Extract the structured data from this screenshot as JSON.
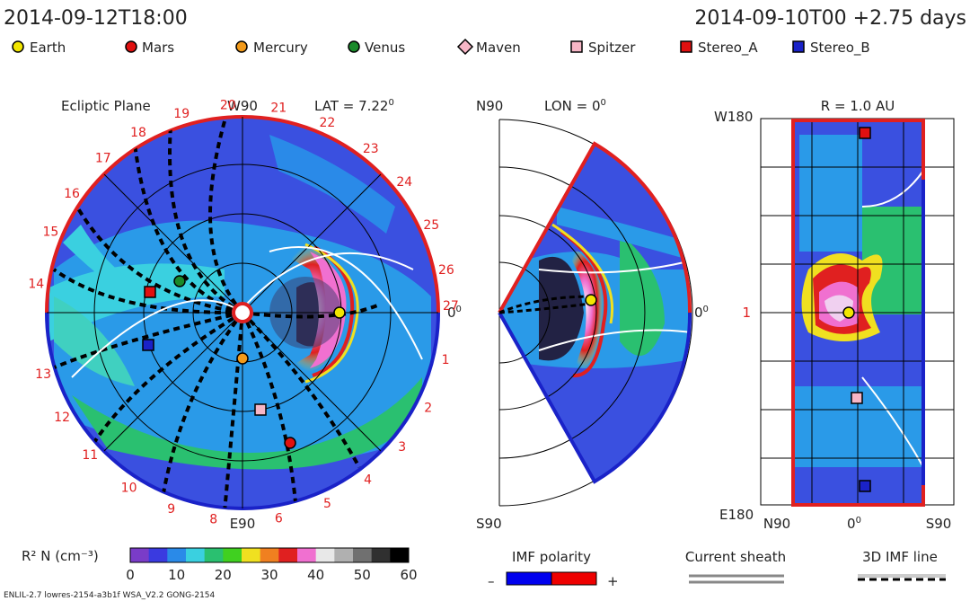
{
  "header": {
    "datetime": "2014-09-12T18:00",
    "run_info": "2014-09-10T00 +2.75 days"
  },
  "legend": [
    {
      "label": "Earth",
      "marker": "circle",
      "color": "#f2e600"
    },
    {
      "label": "Mars",
      "marker": "circle",
      "color": "#e01010"
    },
    {
      "label": "Mercury",
      "marker": "circle",
      "color": "#f29a1a"
    },
    {
      "label": "Venus",
      "marker": "circle",
      "color": "#1a8a2a"
    },
    {
      "label": "Maven",
      "marker": "diamond",
      "color": "#f7b6c6"
    },
    {
      "label": "Spitzer",
      "marker": "square",
      "color": "#f7b6c6"
    },
    {
      "label": "Stereo_A",
      "marker": "square",
      "color": "#e01010"
    },
    {
      "label": "Stereo_B",
      "marker": "square",
      "color": "#1a22c8"
    }
  ],
  "panels": {
    "ecliptic": {
      "title": "Ecliptic Plane",
      "lat_label": "LAT = 7.22",
      "degree_symbol": "0",
      "top_label": "W90",
      "bottom_label": "E90",
      "right_label": "0"
    },
    "meridional": {
      "lon_label": "LON = 0",
      "degree_symbol": "0",
      "top_label": "N90",
      "bottom_label": "S90",
      "right_label": "0"
    },
    "shell": {
      "title": "R = 1.0 AU",
      "top_left_label": "W180",
      "bottom_left_label": "E180",
      "mid_left_label": "1",
      "x_labels": [
        "N90",
        "0",
        "S90"
      ],
      "degree_symbol": "0"
    }
  },
  "colorbar": {
    "label": "R² N (cm⁻³)",
    "ticks": [
      "0",
      "10",
      "20",
      "30",
      "40",
      "50",
      "60"
    ],
    "colors": [
      "#7a3cc8",
      "#3a3ae0",
      "#2a8ae8",
      "#3ad0e0",
      "#2ac070",
      "#40d020",
      "#f0e020",
      "#f08020",
      "#e02020",
      "#f070d0",
      "#e8e8e8",
      "#b0b0b0",
      "#707070",
      "#303030",
      "#000000"
    ]
  },
  "imf_polarity": {
    "label": "IMF polarity",
    "minus": "–",
    "plus": "+",
    "neg_color": "#0000ee",
    "pos_color": "#ee0000"
  },
  "current_sheath": {
    "label": "Current sheath"
  },
  "imf_line": {
    "label": "3D IMF line"
  },
  "footer": {
    "text": "ENLIL-2.7 lowres-2154-a3b1f WSA_V2.2 GONG-2154"
  },
  "chart_data": {
    "type": "heatmap",
    "title": "",
    "colorbar_range": [
      0,
      60
    ],
    "carrington_rotation_ticks": [
      "1",
      "2",
      "3",
      "4",
      "5",
      "6",
      "8",
      "9",
      "10",
      "11",
      "12",
      "13",
      "14",
      "15",
      "16",
      "17",
      "18",
      "19",
      "20",
      "21",
      "22",
      "23",
      "24",
      "25",
      "26",
      "27"
    ],
    "shell_y_ticks": [
      "1"
    ]
  }
}
